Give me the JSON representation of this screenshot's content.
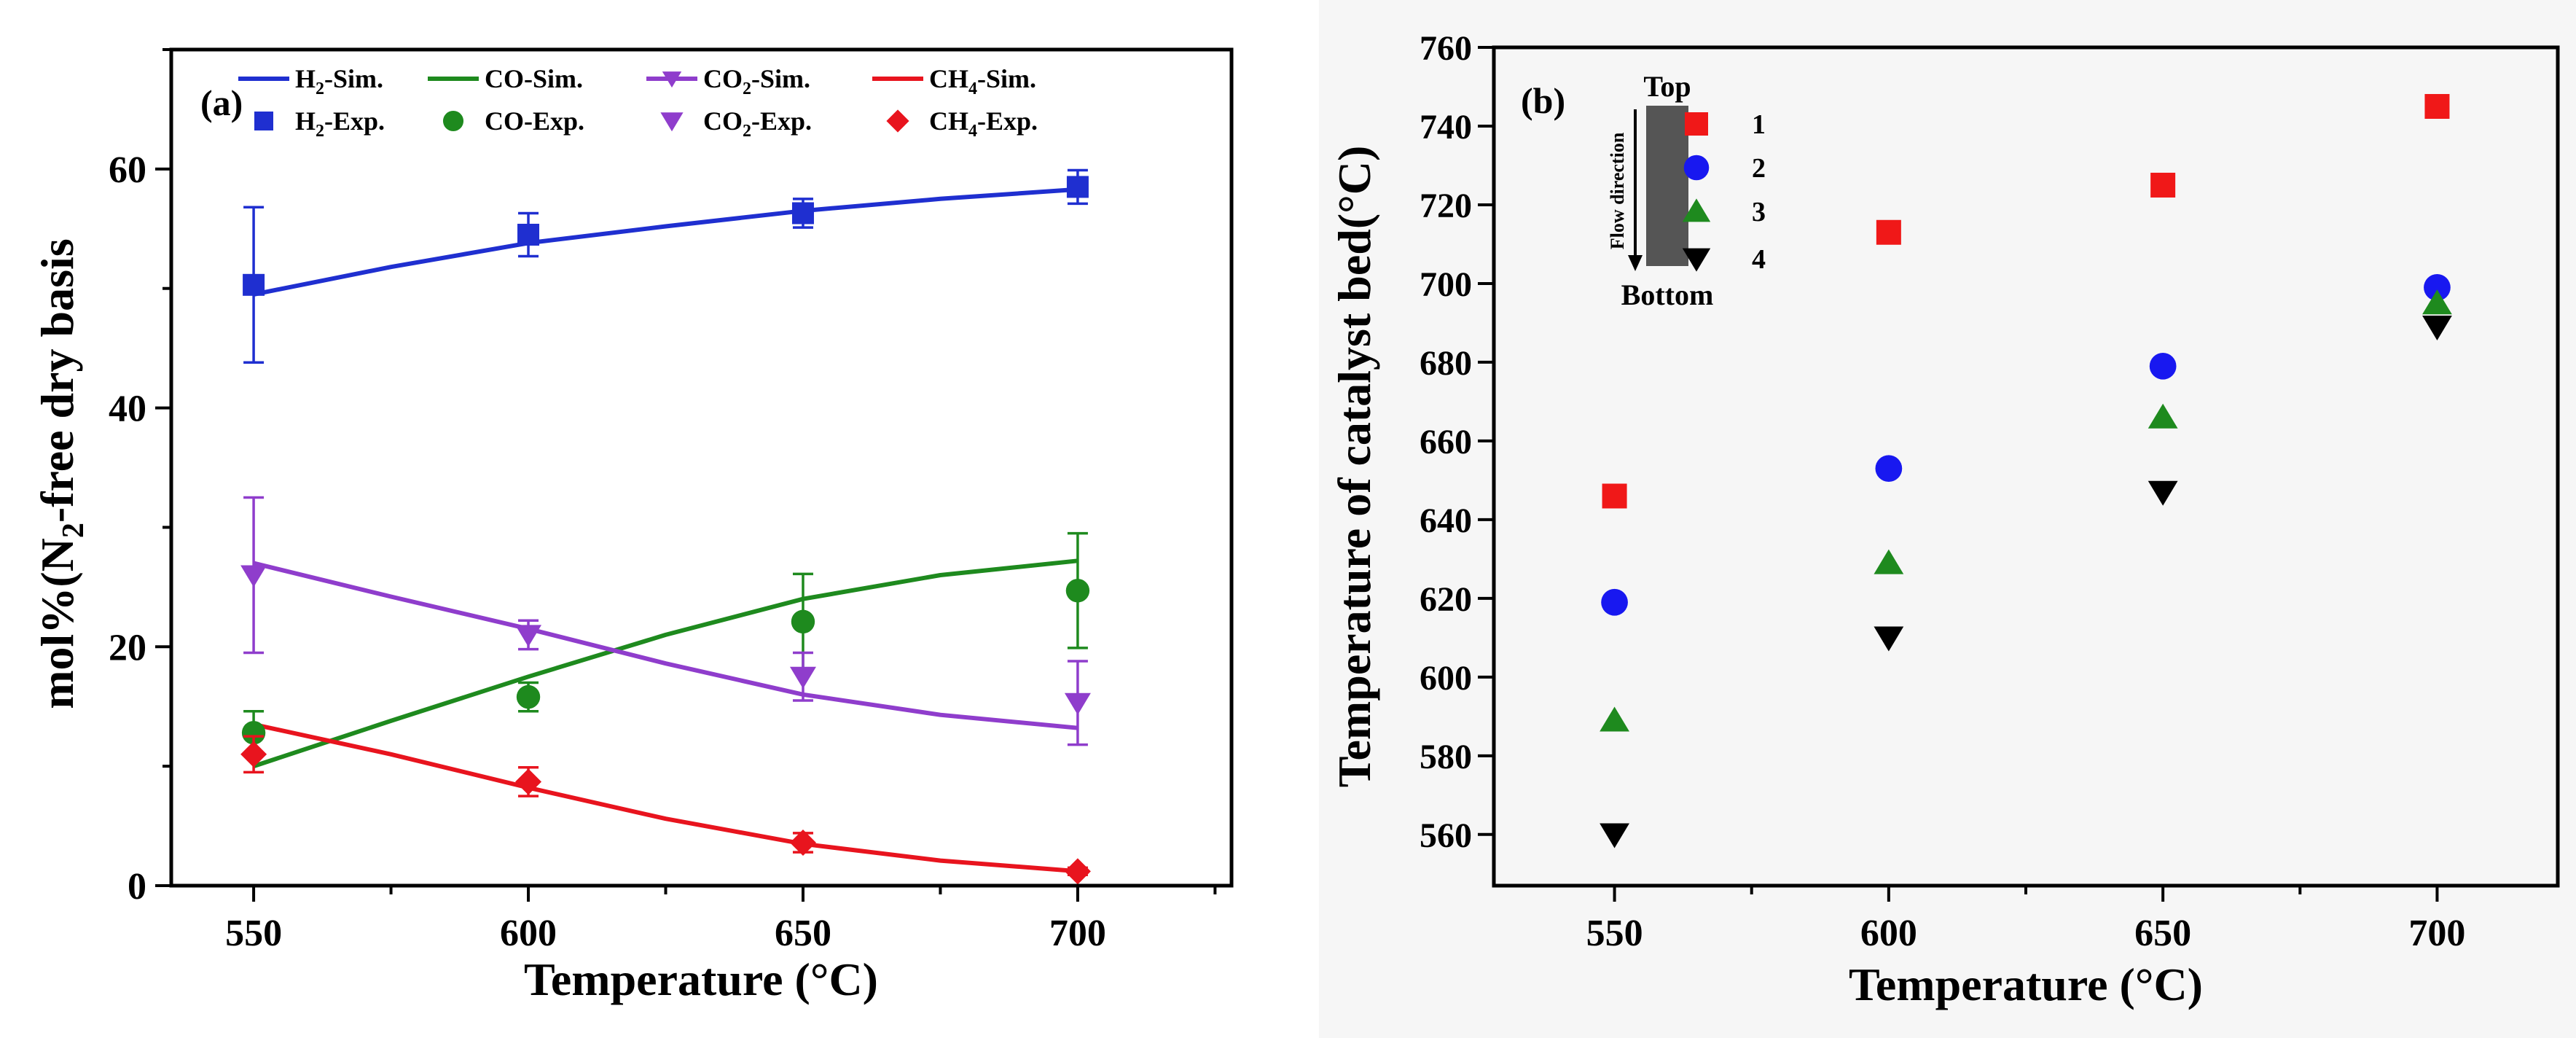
{
  "chart_data": [
    {
      "panel_label": "(a)",
      "type": "line",
      "xlabel": "Temperature (°C)",
      "ylabel_parts": [
        "mol%(N",
        "2",
        "-free dry basis"
      ],
      "xlim": [
        535,
        728
      ],
      "ylim": [
        0,
        70
      ],
      "xticks": [
        550,
        600,
        650,
        700
      ],
      "yticks": [
        0,
        20,
        40,
        60
      ],
      "legend_sim": [
        {
          "text": "H",
          "sub": "2",
          "rest": "-Sim."
        },
        {
          "text": "CO-Sim.",
          "sub": "",
          "rest": ""
        },
        {
          "text": "CO",
          "sub": "2",
          "rest": "-Sim."
        },
        {
          "text": "CH",
          "sub": "4",
          "rest": "-Sim."
        }
      ],
      "legend_exp": [
        {
          "text": "H",
          "sub": "2",
          "rest": "-Exp."
        },
        {
          "text": "CO-Exp.",
          "sub": "",
          "rest": ""
        },
        {
          "text": "CO",
          "sub": "2",
          "rest": "-Exp."
        },
        {
          "text": "CH",
          "sub": "4",
          "rest": "-Exp."
        }
      ],
      "x": [
        550,
        600,
        650,
        700
      ],
      "sim_x": [
        550,
        575,
        600,
        625,
        650,
        675,
        700
      ],
      "series": [
        {
          "name": "H2",
          "color": "#1f2fd0",
          "marker": "square",
          "sim": [
            49.5,
            51.8,
            53.8,
            55.2,
            56.5,
            57.5,
            58.3
          ],
          "exp": [
            50.3,
            54.5,
            56.3,
            58.5
          ],
          "err": [
            6.5,
            1.8,
            1.2,
            1.4
          ]
        },
        {
          "name": "CO",
          "color": "#1e8a1e",
          "marker": "circle",
          "sim": [
            10.0,
            13.8,
            17.5,
            21.0,
            24.0,
            26.0,
            27.2
          ],
          "exp": [
            12.8,
            15.8,
            22.1,
            24.7
          ],
          "err": [
            1.8,
            1.2,
            4.0,
            4.8
          ]
        },
        {
          "name": "CO2",
          "color": "#8f3dcc",
          "marker": "triangle-down",
          "sim": [
            27.0,
            24.2,
            21.5,
            18.6,
            16.0,
            14.3,
            13.2
          ],
          "exp": [
            26.0,
            21.0,
            17.5,
            15.3
          ],
          "err": [
            6.5,
            1.2,
            2.0,
            3.5
          ]
        },
        {
          "name": "CH4",
          "color": "#e8141e",
          "marker": "diamond",
          "sim": [
            13.5,
            11.0,
            8.2,
            5.6,
            3.5,
            2.1,
            1.2
          ],
          "exp": [
            11.0,
            8.7,
            3.6,
            1.2
          ],
          "err": [
            1.5,
            1.2,
            0.8,
            0.3
          ]
        }
      ]
    },
    {
      "panel_label": "(b)",
      "type": "scatter",
      "xlabel": "Temperature (°C)",
      "ylabel": "Temperature of catalyst bed(°C)",
      "xlim": [
        528,
        722
      ],
      "ylim": [
        547,
        760
      ],
      "xticks": [
        550,
        600,
        650,
        700
      ],
      "yticks": [
        560,
        580,
        600,
        620,
        640,
        660,
        680,
        700,
        720,
        740,
        760
      ],
      "x": [
        550,
        600,
        650,
        700
      ],
      "inset": {
        "top": "Top",
        "bottom": "Bottom",
        "flow": "Flow direction"
      },
      "series": [
        {
          "name": "1",
          "color": "#f01818",
          "marker": "square",
          "values": [
            646,
            713,
            725,
            745
          ]
        },
        {
          "name": "2",
          "color": "#1818f0",
          "marker": "circle",
          "values": [
            619,
            653,
            679,
            699
          ]
        },
        {
          "name": "3",
          "color": "#1e8a1e",
          "marker": "triangle-up",
          "values": [
            589,
            629,
            666,
            695
          ]
        },
        {
          "name": "4",
          "color": "#000000",
          "marker": "triangle-down",
          "values": [
            560,
            610,
            647,
            689
          ]
        }
      ]
    }
  ]
}
